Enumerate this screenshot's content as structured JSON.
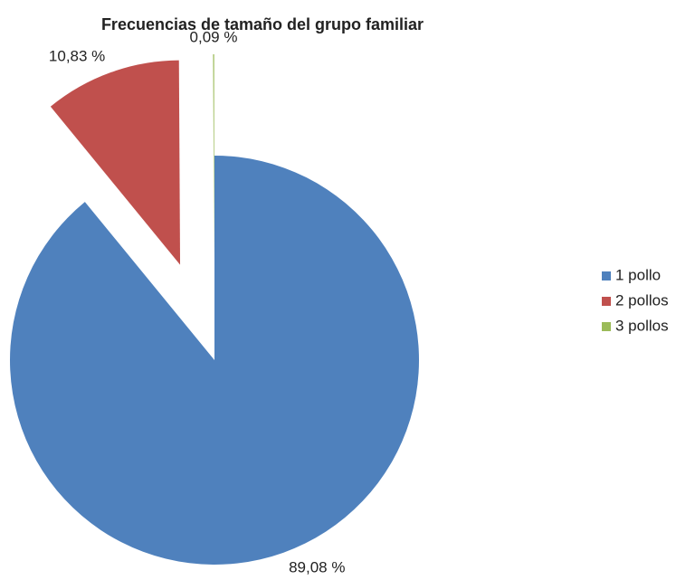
{
  "chart_data": {
    "type": "pie",
    "title": "Frecuencias de tamaño del grupo familiar",
    "categories": [
      "1 pollo",
      "2 pollos",
      "3 pollos"
    ],
    "values": [
      89.08,
      10.83,
      0.09
    ],
    "value_labels": [
      "89,08 %",
      "10,83 %",
      "0,09 %"
    ],
    "colors": [
      "#4f81bd",
      "#c0504d",
      "#9bbb59"
    ],
    "legend": "right"
  }
}
